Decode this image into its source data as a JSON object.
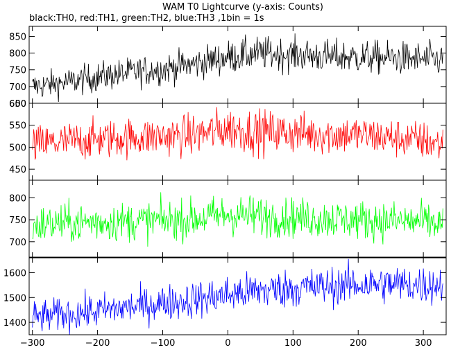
{
  "chart_data": {
    "type": "line",
    "title": "WAM T0 Lightcurve (y-axis: Counts)",
    "subtitle": "black:TH0, red:TH1, green:TH2, blue:TH3 ,1bin = 1s",
    "xlim": [
      -305,
      335
    ],
    "x_ticks": [
      -300,
      -200,
      -100,
      0,
      100,
      200,
      300
    ],
    "x_tick_labels": [
      "−300",
      "−200",
      "−100",
      "0",
      "100",
      "200",
      "300"
    ],
    "series": [
      {
        "name": "TH0",
        "color": "#000000",
        "ylim": [
          650,
          880
        ],
        "y_ticks": [
          650,
          700,
          750,
          800,
          850
        ],
        "y_tick_labels": [
          "650",
          "700",
          "750",
          "800",
          "850"
        ],
        "x": [
          -300,
          -250,
          -200,
          -150,
          -100,
          -50,
          0,
          50,
          100,
          150,
          200,
          250,
          300,
          330
        ],
        "mean": [
          700,
          712,
          728,
          742,
          752,
          768,
          788,
          800,
          795,
          790,
          788,
          785,
          782,
          780
        ],
        "amp": [
          38,
          38,
          40,
          40,
          42,
          42,
          45,
          45,
          45,
          45,
          45,
          45,
          45,
          45
        ]
      },
      {
        "name": "TH1",
        "color": "#ff0000",
        "ylim": [
          425,
          600
        ],
        "y_ticks": [
          450,
          500,
          550,
          600
        ],
        "y_tick_labels": [
          "450",
          "500",
          "550",
          "600"
        ],
        "x": [
          -300,
          -250,
          -200,
          -150,
          -100,
          -50,
          0,
          50,
          100,
          150,
          200,
          250,
          300,
          330
        ],
        "mean": [
          505,
          512,
          518,
          522,
          524,
          528,
          542,
          535,
          532,
          530,
          528,
          522,
          515,
          505
        ],
        "amp": [
          40,
          40,
          40,
          40,
          40,
          42,
          45,
          45,
          42,
          42,
          40,
          40,
          40,
          40
        ]
      },
      {
        "name": "TH2",
        "color": "#00ff00",
        "ylim": [
          665,
          840
        ],
        "y_ticks": [
          700,
          750,
          800
        ],
        "y_tick_labels": [
          "700",
          "750",
          "800"
        ],
        "x": [
          -300,
          -250,
          -200,
          -150,
          -100,
          -50,
          0,
          50,
          100,
          150,
          200,
          250,
          300,
          330
        ],
        "mean": [
          738,
          742,
          745,
          746,
          748,
          752,
          762,
          758,
          755,
          752,
          750,
          748,
          745,
          740
        ],
        "amp": [
          40,
          40,
          40,
          40,
          40,
          40,
          42,
          42,
          40,
          40,
          40,
          40,
          40,
          40
        ]
      },
      {
        "name": "TH3",
        "color": "#0000ff",
        "ylim": [
          1350,
          1660
        ],
        "y_ticks": [
          1400,
          1500,
          1600
        ],
        "y_tick_labels": [
          "1400",
          "1500",
          "1600"
        ],
        "x": [
          -300,
          -250,
          -200,
          -150,
          -100,
          -50,
          0,
          50,
          100,
          150,
          200,
          250,
          300,
          330
        ],
        "mean": [
          1420,
          1432,
          1445,
          1462,
          1478,
          1492,
          1512,
          1528,
          1538,
          1545,
          1552,
          1555,
          1550,
          1552
        ],
        "amp": [
          60,
          60,
          62,
          62,
          65,
          68,
          70,
          70,
          70,
          70,
          70,
          70,
          70,
          70
        ]
      }
    ],
    "grid": false,
    "legend": "none"
  }
}
